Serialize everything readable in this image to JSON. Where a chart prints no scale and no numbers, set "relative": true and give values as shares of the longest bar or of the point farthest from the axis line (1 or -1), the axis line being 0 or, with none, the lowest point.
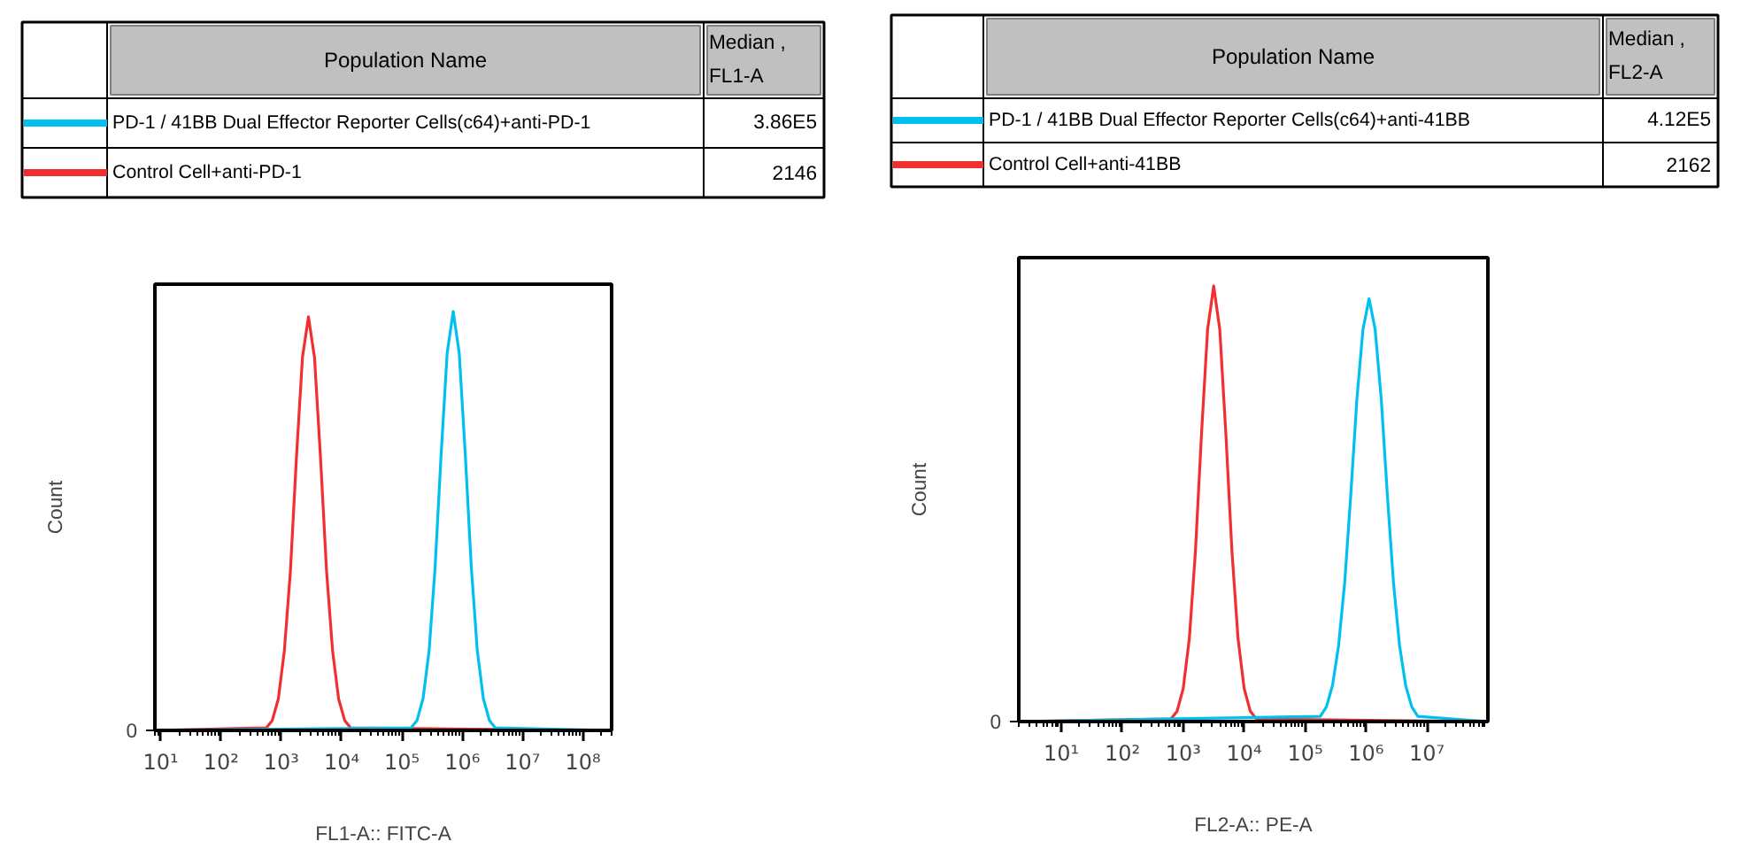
{
  "chart_data": [
    {
      "type": "line",
      "xlabel": "FL1-A:: FITC-A",
      "ylabel": "Count",
      "legend_title": "Population Name",
      "legend": "top",
      "relative": true,
      "log": "x",
      "xlim": [
        8,
        300000000
      ],
      "xticks": [
        {
          "value": 10,
          "label": "10¹"
        },
        {
          "value": 100,
          "label": "10²"
        },
        {
          "value": 1000,
          "label": "10³"
        },
        {
          "value": 10000,
          "label": "10⁴"
        },
        {
          "value": 100000,
          "label": "10⁵"
        },
        {
          "value": 1000000,
          "label": "10⁶"
        },
        {
          "value": 10000000,
          "label": "10⁷"
        },
        {
          "value": 100000000,
          "label": "10⁸"
        }
      ],
      "annotations": [
        "0",
        "Median , FL1-A",
        "3.86E5",
        "2146"
      ],
      "series": [
        {
          "name": "PD-1 / 41BB Dual Effector Reporter Cells(c64)+anti-PD-1",
          "color": "#00c0f0",
          "x": [
            8,
            141000,
            178000,
            224000,
            282000,
            355000,
            447000,
            562000,
            708000,
            891000,
            1122000,
            1413000,
            1778000,
            2239000,
            2818000,
            3548000,
            300000000
          ],
          "values": [
            0,
            0.006,
            0.024,
            0.076,
            0.19,
            0.39,
            0.66,
            0.9,
            1,
            0.9,
            0.66,
            0.39,
            0.19,
            0.076,
            0.024,
            0.006,
            0
          ]
        },
        {
          "name": "Control Cell+anti-PD-1",
          "color": "#f03030",
          "x": [
            8,
            562,
            708,
            891,
            1122,
            1413,
            1778,
            2239,
            2818,
            3548,
            4467,
            5623,
            7079,
            8913,
            11220,
            14125,
            300000000
          ],
          "values": [
            0,
            0.006,
            0.024,
            0.075,
            0.19,
            0.38,
            0.65,
            0.89,
            0.987,
            0.89,
            0.65,
            0.38,
            0.19,
            0.075,
            0.024,
            0.006,
            0
          ]
        }
      ]
    },
    {
      "type": "line",
      "xlabel": "FL2-A:: PE-A",
      "ylabel": "Count",
      "legend_title": "Population Name",
      "legend": "top",
      "relative": true,
      "log": "x",
      "xlim": [
        2,
        100000000
      ],
      "xticks": [
        {
          "value": 10,
          "label": "10¹"
        },
        {
          "value": 100,
          "label": "10²"
        },
        {
          "value": 1000,
          "label": "10³"
        },
        {
          "value": 10000,
          "label": "10⁴"
        },
        {
          "value": 100000,
          "label": "10⁵"
        },
        {
          "value": 1000000,
          "label": "10⁶"
        },
        {
          "value": 10000000,
          "label": "10⁷"
        }
      ],
      "annotations": [
        "0",
        "Median , FL2-A",
        "4.12E5",
        "2162"
      ],
      "series": [
        {
          "name": "PD-1 / 41BB Dual Effector Reporter Cells(c64)+anti-41BB",
          "color": "#00c0f0",
          "x": [
            2,
            178000,
            224000,
            282000,
            355000,
            447000,
            562000,
            708000,
            891000,
            1122000,
            1413000,
            1778000,
            2239000,
            2818000,
            3548000,
            4467000,
            5623000,
            7079000,
            100000000
          ],
          "values": [
            0,
            0.012,
            0.034,
            0.083,
            0.175,
            0.32,
            0.52,
            0.74,
            0.9,
            0.971,
            0.9,
            0.74,
            0.52,
            0.32,
            0.175,
            0.083,
            0.034,
            0.012,
            0
          ]
        },
        {
          "name": "Control Cell+anti-41BB",
          "color": "#f03030",
          "x": [
            2,
            631,
            794,
            1000,
            1259,
            1585,
            1995,
            2512,
            3162,
            3981,
            5012,
            6310,
            7943,
            10000,
            12589,
            15849,
            100000000
          ],
          "values": [
            0,
            0.006,
            0.024,
            0.076,
            0.19,
            0.39,
            0.66,
            0.9,
            1,
            0.9,
            0.66,
            0.39,
            0.19,
            0.076,
            0.024,
            0.006,
            0
          ]
        }
      ]
    }
  ]
}
